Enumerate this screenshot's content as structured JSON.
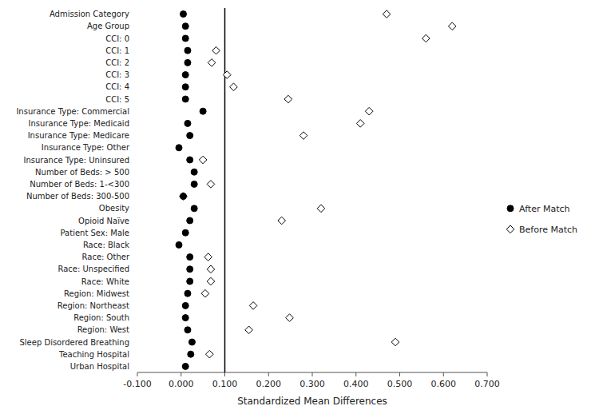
{
  "chart_data": {
    "type": "dot",
    "orientation": "horizontal",
    "x_label": "Standardized Mean Differences",
    "categories": [
      "Admission Category",
      "Age Group",
      "CCI: 0",
      "CCI: 1",
      "CCI: 2",
      "CCI: 3",
      "CCI: 4",
      "CCI: 5",
      "Insurance Type: Commercial",
      "Insurance Type: Medicaid",
      "Insurance Type: Medicare",
      "Insurance Type: Other",
      "Insurance Type: Uninsured",
      "Number of Beds: > 500",
      "Number of Beds: 1-<300",
      "Number of Beds: 300-500",
      "Obesity",
      "Opioid Naïve",
      "Patient Sex: Male",
      "Race: Black",
      "Race: Other",
      "Race: Unspecified",
      "Race: White",
      "Region: Midwest",
      "Region: Northeast",
      "Region: South",
      "Region: West",
      "Sleep Disordered Breathing",
      "Teaching Hospital",
      "Urban Hospital"
    ],
    "series": [
      {
        "name": "After Match",
        "color": "black",
        "marker": "circle",
        "values": [
          0.005,
          0.01,
          0.01,
          0.015,
          0.015,
          0.01,
          0.01,
          0.01,
          0.05,
          0.015,
          0.02,
          -0.005,
          0.02,
          0.03,
          0.03,
          0.005,
          0.03,
          0.02,
          0.01,
          -0.005,
          0.02,
          0.02,
          0.02,
          0.015,
          0.01,
          0.01,
          0.015,
          0.025,
          0.022,
          0.01
        ]
      },
      {
        "name": "Before Match",
        "color": "black",
        "marker": "open-diamond",
        "values": [
          0.47,
          0.62,
          0.56,
          0.08,
          0.07,
          0.105,
          0.12,
          0.245,
          0.43,
          0.41,
          0.28,
          null,
          0.05,
          null,
          0.068,
          0.005,
          0.32,
          0.23,
          null,
          null,
          0.062,
          0.068,
          0.068,
          0.055,
          0.165,
          0.248,
          0.155,
          0.49,
          0.065,
          null
        ]
      }
    ],
    "reference_line": 0.1,
    "xlim": [
      -0.1,
      0.7
    ],
    "xticks": [
      {
        "value": -0.1,
        "label": "-0.100"
      },
      {
        "value": 0.0,
        "label": "0.000"
      },
      {
        "value": 0.1,
        "label": "0.100"
      },
      {
        "value": 0.2,
        "label": "0.200"
      },
      {
        "value": 0.3,
        "label": "0.300"
      },
      {
        "value": 0.4,
        "label": "0.400"
      },
      {
        "value": 0.5,
        "label": "0.500"
      },
      {
        "value": 0.6,
        "label": "0.600"
      },
      {
        "value": 0.7,
        "label": "0.700"
      }
    ],
    "grid": false,
    "legend": "right"
  }
}
